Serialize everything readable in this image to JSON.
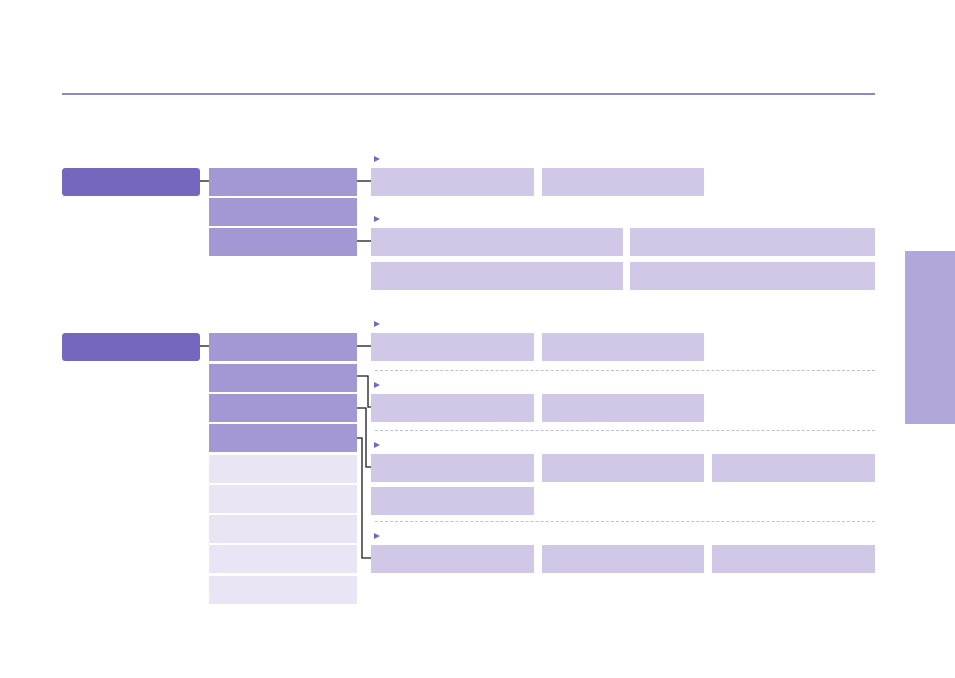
{
  "colors": {
    "rule": "#8f87c6",
    "tab": "#b2a7da",
    "root": "#7567bd",
    "l2": "#a498d4",
    "l2f": "#e9e5f5",
    "leaf": "#d1c8e8",
    "marker": "#7567bd",
    "dash": "#c3bce3",
    "line": "#1a1a1a"
  },
  "tree": {
    "root_1": {
      "label": ""
    },
    "root_2": {
      "label": ""
    }
  }
}
